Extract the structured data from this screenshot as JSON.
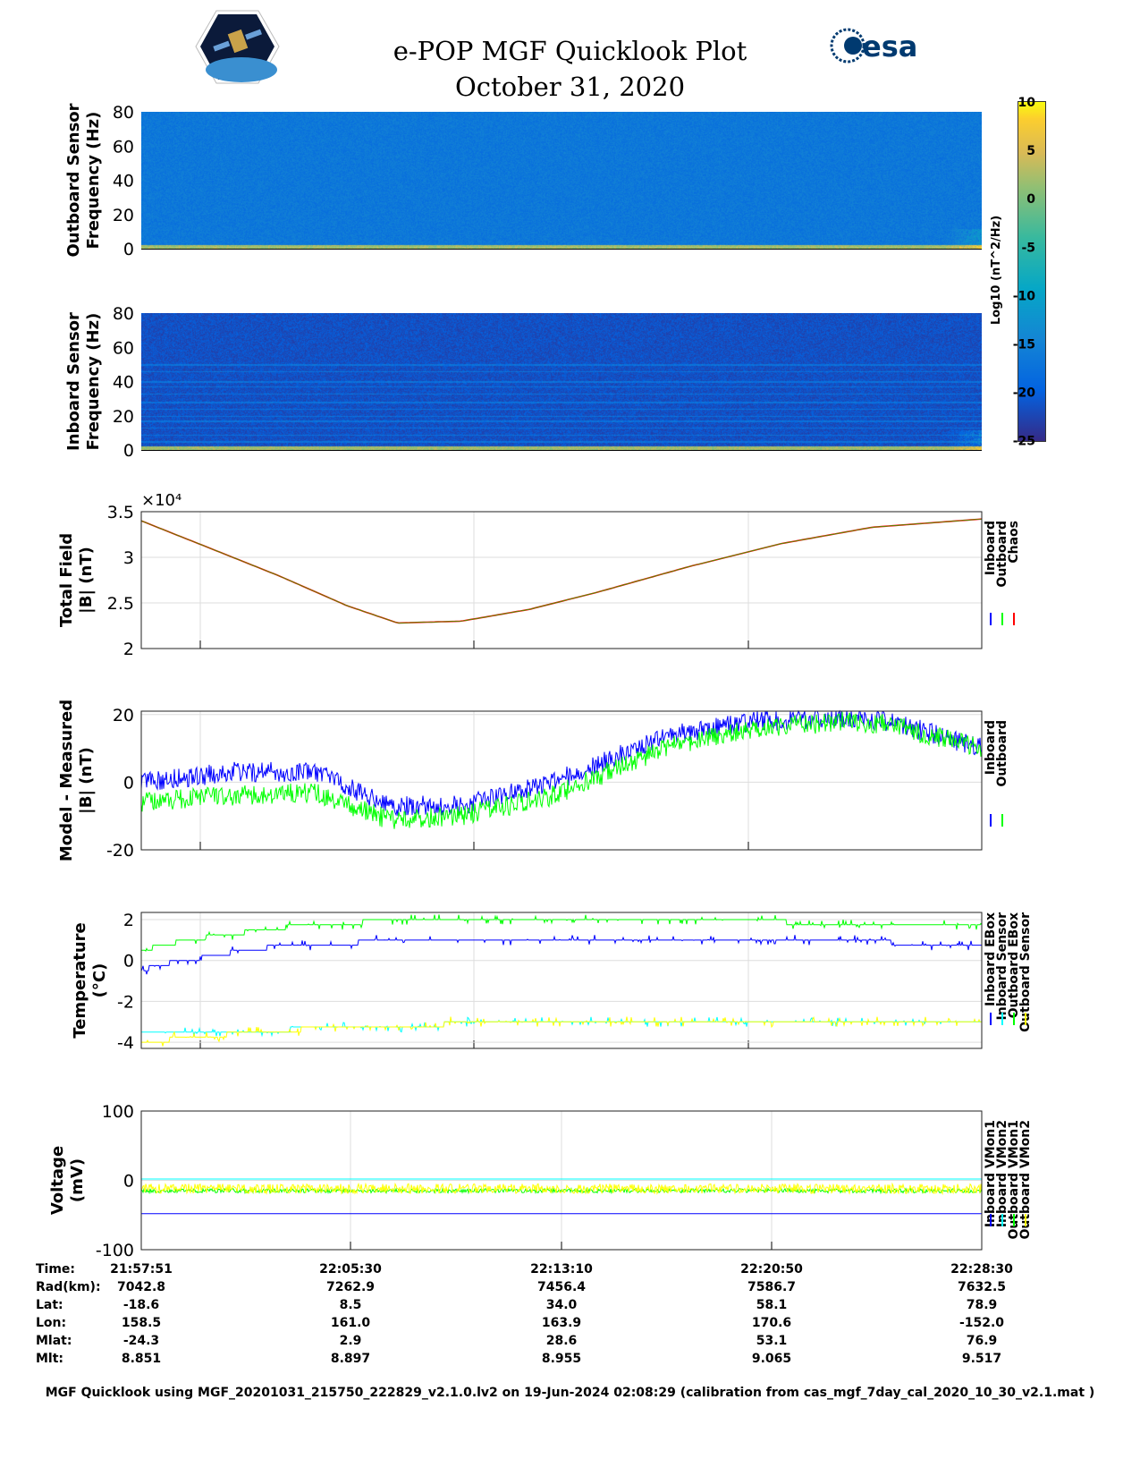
{
  "header": {
    "title": "e-POP MGF Quicklook Plot",
    "date": "October 31, 2020",
    "left_logo": "CASSIOPE",
    "right_logo": "esa"
  },
  "colors": {
    "inboard": "#0000ff",
    "outboard": "#00ff00",
    "chaos": "#ff0000",
    "cyan": "#00ffff",
    "yellow": "#ffff00",
    "grid": "#dddddd"
  },
  "colorbar": {
    "label": "Log10 (nT^2/Hz)",
    "ticks": [
      "10",
      "5",
      "0",
      "-5",
      "-10",
      "-15",
      "-20",
      "-25"
    ],
    "range": [
      -25,
      10
    ]
  },
  "chart_data": [
    {
      "type": "heatmap",
      "name": "outboard-spectrogram",
      "ylabel": [
        "Outboard Sensor",
        "Frequency (Hz)"
      ],
      "ylim": [
        0,
        80
      ],
      "yticks": [
        "0",
        "20",
        "40",
        "60",
        "80"
      ],
      "background_level": -16.5,
      "low_freq_level": 3,
      "lines_hz": []
    },
    {
      "type": "heatmap",
      "name": "inboard-spectrogram",
      "ylabel": [
        "Inboard Sensor",
        "Frequency (Hz)"
      ],
      "ylim": [
        0,
        80
      ],
      "yticks": [
        "0",
        "20",
        "40",
        "60",
        "80"
      ],
      "background_level": -21.5,
      "low_freq_level": 3,
      "lines_hz": [
        5,
        9,
        13,
        17,
        20,
        24,
        28,
        33,
        37,
        40,
        46,
        50
      ]
    },
    {
      "type": "line",
      "name": "total-field",
      "ylabel": [
        "Total Field",
        "|B| (nT)"
      ],
      "exponent": "×10⁴",
      "ylim": [
        2,
        3.5
      ],
      "yticks": [
        "2",
        "2.5",
        "3",
        "3.5"
      ],
      "xlim_s": [
        0,
        1839
      ],
      "legend": [
        "Inboard",
        "Outboard",
        "Chaos"
      ],
      "series": [
        {
          "name": "Chaos",
          "color": "#ff0000",
          "t": [
            0,
            150,
            300,
            450,
            561,
            700,
            850,
            1000,
            1200,
            1400,
            1600,
            1839
          ],
          "y": [
            3.4,
            3.1,
            2.8,
            2.47,
            2.28,
            2.3,
            2.43,
            2.62,
            2.9,
            3.15,
            3.33,
            3.42
          ]
        }
      ]
    },
    {
      "type": "line",
      "name": "model-minus-measured",
      "ylabel": [
        "Model - Measured",
        "|B| (nT)"
      ],
      "ylim": [
        -20,
        21
      ],
      "yticks": [
        "-20",
        "0",
        "20"
      ],
      "xlim_s": [
        0,
        1839
      ],
      "legend": [
        "Inboard",
        "Outboard"
      ],
      "series": [
        {
          "name": "Inboard",
          "color": "#0000ff",
          "t": [
            0,
            200,
            380,
            540,
            700,
            900,
            1160,
            1340,
            1550,
            1640,
            1839
          ],
          "y": [
            0,
            3,
            3,
            -7,
            -7,
            0,
            14,
            18,
            19,
            18,
            10
          ]
        },
        {
          "name": "Outboard",
          "color": "#00ff00",
          "t": [
            0,
            200,
            380,
            540,
            700,
            900,
            1160,
            1340,
            1550,
            1640,
            1839
          ],
          "y": [
            -6,
            -4,
            -3,
            -11,
            -10,
            -4,
            11,
            16,
            18,
            17,
            10
          ]
        }
      ]
    },
    {
      "type": "line",
      "name": "temperature",
      "ylabel": [
        "Temperature",
        "(°C)"
      ],
      "ylim": [
        -4.3,
        2.35
      ],
      "yticks": [
        "-4",
        "-2",
        "0",
        "2"
      ],
      "xlim_s": [
        0,
        1839
      ],
      "legend": [
        "Inboard EBox",
        "Inboard Sensor",
        "Outboard EBox",
        "Outboard Sensor"
      ],
      "series": [
        {
          "name": "Inboard EBox",
          "color": "#00ff00",
          "t": [
            0,
            100,
            200,
            300,
            500,
            700,
            1839
          ],
          "y": [
            0.5,
            1.0,
            1.3,
            1.6,
            1.9,
            2.0,
            1.8
          ]
        },
        {
          "name": "Inboard Sensor",
          "color": "#0000ff",
          "t": [
            0,
            40,
            100,
            200,
            300,
            500,
            700,
            1500,
            1839
          ],
          "y": [
            -0.5,
            -0.2,
            0,
            0.4,
            0.7,
            0.9,
            1.0,
            1.0,
            0.7
          ]
        },
        {
          "name": "Outboard EBox",
          "color": "#00ffff",
          "t": [
            0,
            200,
            400,
            700,
            1000,
            1839
          ],
          "y": [
            -3.6,
            -3.5,
            -3.3,
            -3.1,
            -3.0,
            -2.9
          ]
        },
        {
          "name": "Outboard Sensor",
          "color": "#ffff00",
          "t": [
            0,
            100,
            200,
            400,
            700,
            1000,
            1839
          ],
          "y": [
            -4.0,
            -3.8,
            -3.6,
            -3.3,
            -3.1,
            -3.0,
            -2.9
          ]
        }
      ]
    },
    {
      "type": "line",
      "name": "voltage",
      "ylabel": [
        "Voltage",
        "(mV)"
      ],
      "ylim": [
        -100,
        100
      ],
      "yticks": [
        "-100",
        "0",
        "100"
      ],
      "xlim_s": [
        0,
        1839
      ],
      "legend": [
        "Inboard VMon1",
        "Inboard VMon2",
        "Outboard VMon1",
        "Outboard VMon2"
      ],
      "series": [
        {
          "name": "Inboard VMon1",
          "color": "#0000ff",
          "t": [
            0,
            1839
          ],
          "y": [
            -48,
            -48
          ]
        },
        {
          "name": "Inboard VMon2",
          "color": "#00ffff",
          "t": [
            0,
            1839
          ],
          "y": [
            2,
            2
          ]
        },
        {
          "name": "Outboard VMon1",
          "color": "#00ff00",
          "t": [
            0,
            1839
          ],
          "y": [
            -15,
            -15
          ]
        },
        {
          "name": "Outboard VMon2",
          "color": "#ffff00",
          "t": [
            0,
            1839
          ],
          "y": [
            -12,
            -12
          ]
        }
      ]
    }
  ],
  "ephemeris": {
    "labels": [
      "Time:",
      "Rad(km):",
      "Lat:",
      "Lon:",
      "Mlat:",
      "Mlt:"
    ],
    "columns": [
      [
        "21:57:51",
        "7042.8",
        "-18.6",
        "158.5",
        "-24.3",
        "8.851"
      ],
      [
        "22:05:30",
        "7262.9",
        "8.5",
        "161.0",
        "2.9",
        "8.897"
      ],
      [
        "22:13:10",
        "7456.4",
        "34.0",
        "163.9",
        "28.6",
        "8.955"
      ],
      [
        "22:20:50",
        "7586.7",
        "58.1",
        "170.6",
        "53.1",
        "9.065"
      ],
      [
        "22:28:30",
        "7632.5",
        "78.9",
        "-152.0",
        "76.9",
        "9.517"
      ]
    ]
  },
  "footer": "MGF Quicklook using MGF_20201031_215750_222829_v2.1.0.lv2 on 19-Jun-2024 02:08:29 (calibration from cas_mgf_7day_cal_2020_10_30_v2.1.mat )"
}
